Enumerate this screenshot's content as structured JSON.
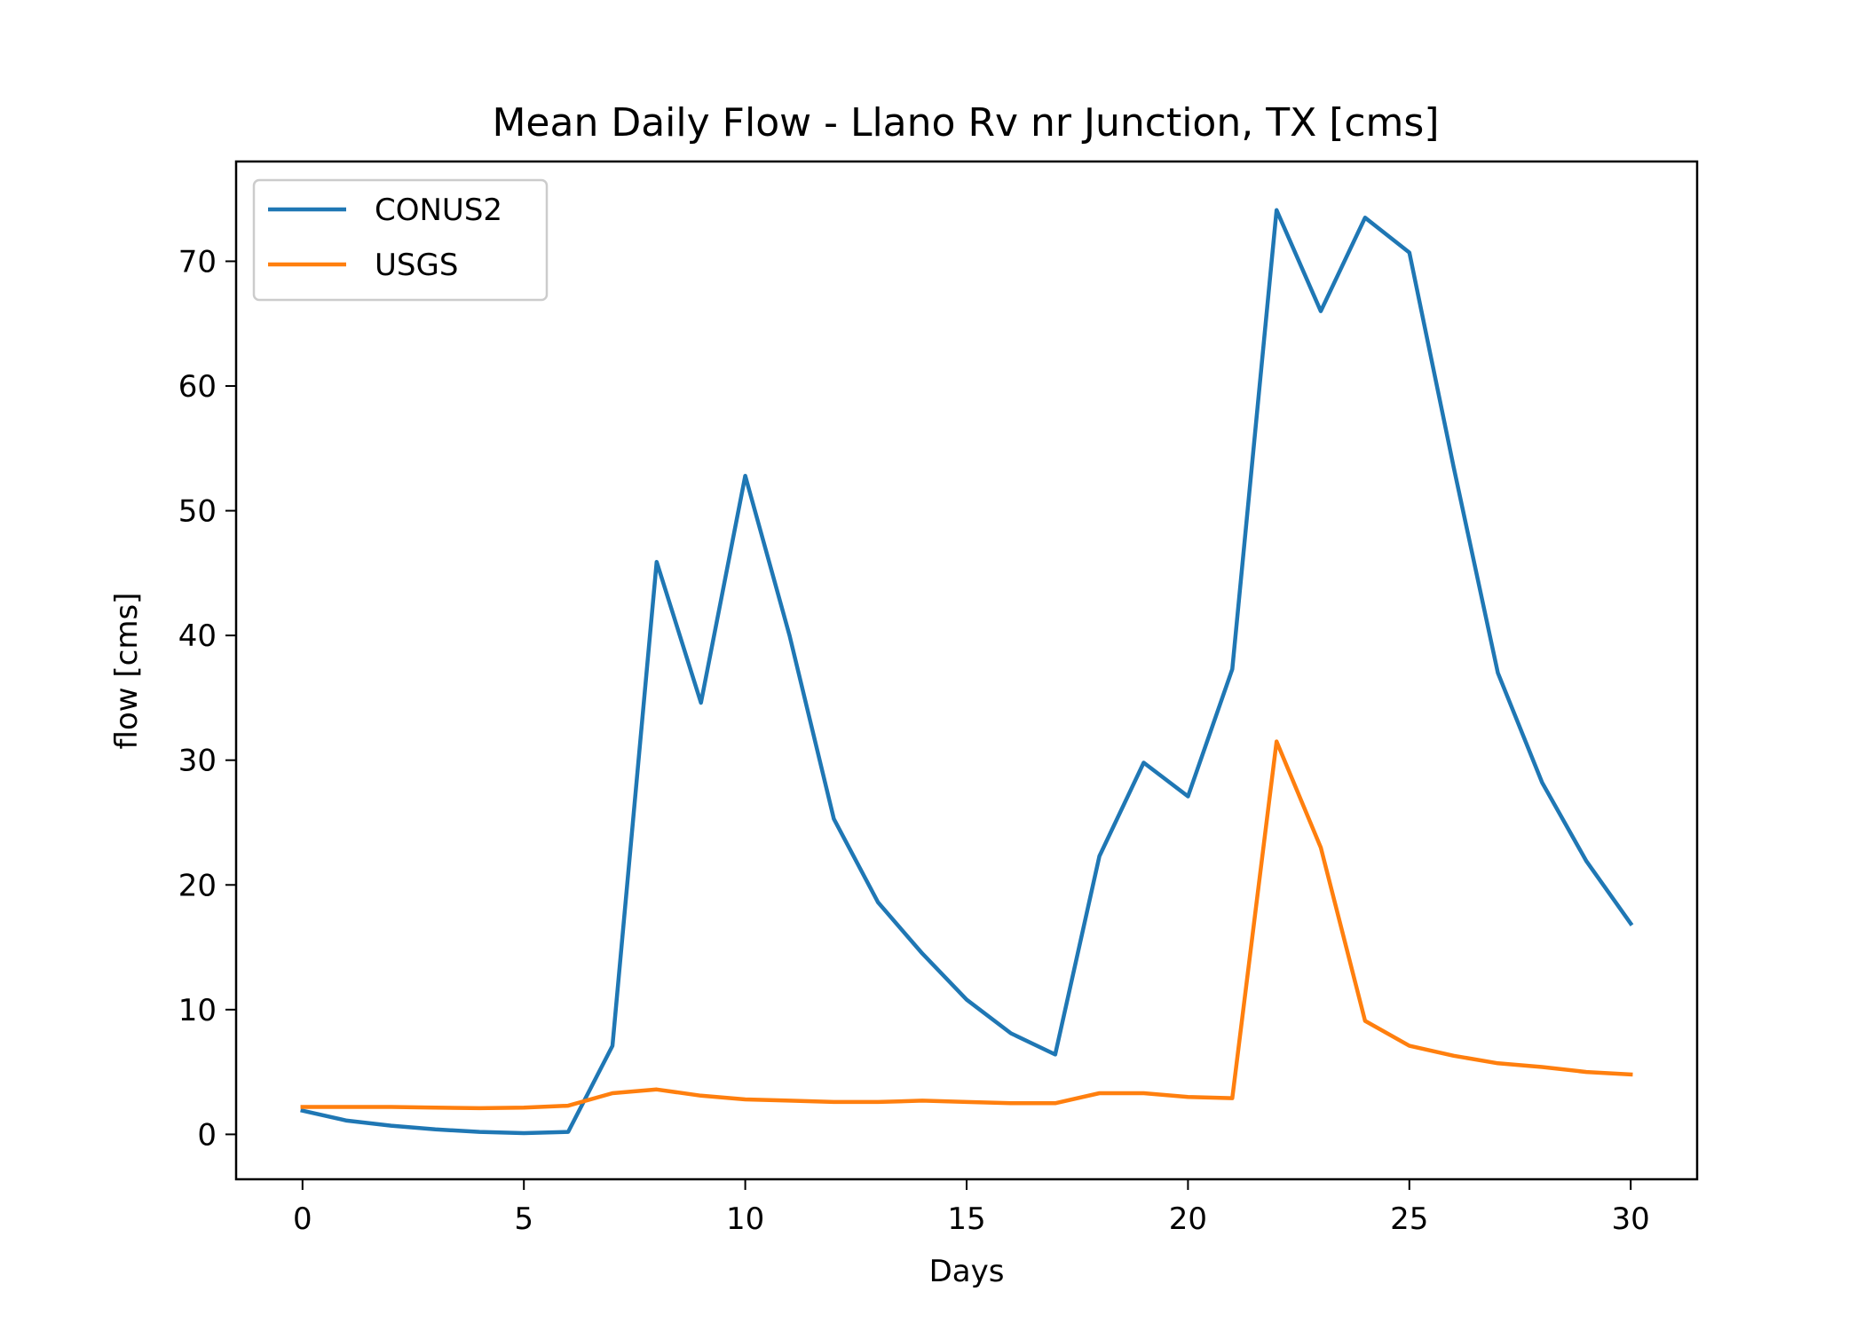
{
  "chart_data": {
    "type": "line",
    "title": "Mean Daily Flow - Llano Rv nr Junction, TX [cms]",
    "xlabel": "Days",
    "ylabel": "flow [cms]",
    "xlim": [
      -1.5,
      31.5
    ],
    "ylim": [
      -3.6,
      78.0
    ],
    "xticks": [
      0,
      5,
      10,
      15,
      20,
      25,
      30
    ],
    "yticks": [
      0,
      10,
      20,
      30,
      40,
      50,
      60,
      70
    ],
    "grid": false,
    "legend_position": "upper-left",
    "x": [
      0,
      1,
      2,
      3,
      4,
      5,
      6,
      7,
      8,
      9,
      10,
      11,
      12,
      13,
      14,
      15,
      16,
      17,
      18,
      19,
      20,
      21,
      22,
      23,
      24,
      25,
      26,
      27,
      28,
      29,
      30
    ],
    "series": [
      {
        "name": "CONUS2",
        "color": "#1f77b4",
        "values": [
          1.9,
          1.1,
          0.7,
          0.4,
          0.2,
          0.1,
          0.2,
          7.1,
          45.9,
          34.6,
          52.8,
          40.0,
          25.3,
          18.6,
          14.5,
          10.8,
          8.1,
          6.4,
          22.3,
          29.8,
          27.1,
          37.3,
          74.1,
          66.0,
          73.5,
          70.7,
          53.5,
          37.0,
          28.2,
          21.9,
          16.9
        ]
      },
      {
        "name": "USGS",
        "color": "#ff7f0e",
        "values": [
          2.2,
          2.2,
          2.2,
          2.15,
          2.1,
          2.15,
          2.3,
          3.3,
          3.6,
          3.1,
          2.8,
          2.7,
          2.6,
          2.6,
          2.7,
          2.6,
          2.5,
          2.5,
          3.3,
          3.3,
          3.0,
          2.9,
          31.5,
          23.0,
          9.1,
          7.1,
          6.3,
          5.7,
          5.4,
          5.0,
          4.8
        ]
      }
    ]
  }
}
